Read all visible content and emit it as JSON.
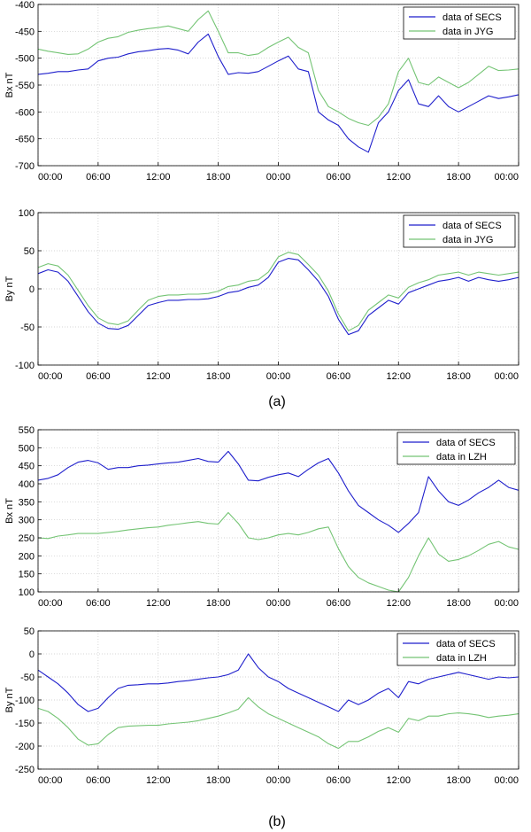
{
  "panel_labels": {
    "a": "(a)",
    "b": "(b)"
  },
  "colors": {
    "secs": "#1f1fcc",
    "station": "#74c474",
    "grid": "#c8c8c8",
    "axis": "#000000"
  },
  "chart_data": [
    {
      "type": "line",
      "title": "",
      "xlabel": "",
      "ylabel": "Bx nT",
      "ylim": [
        -700,
        -400
      ],
      "yticks": [
        -700,
        -650,
        -600,
        -550,
        -500,
        -450,
        -400
      ],
      "xticks": [
        "00:00",
        "06:00",
        "12:00",
        "18:00",
        "00:00",
        "06:00",
        "12:00",
        "18:00",
        "00:00"
      ],
      "grid": true,
      "legend": "top-right",
      "series": [
        {
          "name": "data of SECS",
          "color": "secs",
          "values": [
            -530,
            -528,
            -525,
            -525,
            -522,
            -520,
            -505,
            -500,
            -498,
            -492,
            -488,
            -486,
            -483,
            -482,
            -485,
            -492,
            -470,
            -455,
            -497,
            -530,
            -527,
            -528,
            -525,
            -515,
            -505,
            -496,
            -520,
            -525,
            -600,
            -615,
            -625,
            -650,
            -665,
            -675,
            -620,
            -600,
            -560,
            -540,
            -585,
            -590,
            -570,
            -590,
            -600,
            -590,
            -580,
            -570,
            -575,
            -572,
            -568
          ]
        },
        {
          "name": "data in JYG",
          "color": "station",
          "values": [
            -483,
            -487,
            -490,
            -493,
            -492,
            -483,
            -470,
            -463,
            -460,
            -452,
            -448,
            -445,
            -443,
            -440,
            -445,
            -450,
            -428,
            -412,
            -450,
            -490,
            -490,
            -495,
            -492,
            -480,
            -470,
            -461,
            -480,
            -490,
            -560,
            -590,
            -600,
            -612,
            -620,
            -625,
            -610,
            -585,
            -525,
            -500,
            -545,
            -550,
            -535,
            -545,
            -555,
            -545,
            -530,
            -515,
            -523,
            -522,
            -520
          ]
        }
      ]
    },
    {
      "type": "line",
      "title": "",
      "xlabel": "",
      "ylabel": "By nT",
      "ylim": [
        -100,
        100
      ],
      "yticks": [
        -100,
        -50,
        0,
        50,
        100
      ],
      "xticks": [
        "00:00",
        "06:00",
        "12:00",
        "18:00",
        "00:00",
        "06:00",
        "12:00",
        "18:00",
        "00:00"
      ],
      "grid": true,
      "legend": "top-right",
      "series": [
        {
          "name": "data of SECS",
          "color": "secs",
          "values": [
            20,
            25,
            22,
            10,
            -10,
            -30,
            -45,
            -52,
            -53,
            -48,
            -35,
            -22,
            -18,
            -15,
            -15,
            -14,
            -14,
            -13,
            -10,
            -5,
            -3,
            2,
            5,
            15,
            35,
            40,
            38,
            25,
            10,
            -10,
            -40,
            -60,
            -55,
            -35,
            -25,
            -15,
            -20,
            -5,
            0,
            5,
            10,
            12,
            15,
            10,
            15,
            12,
            10,
            12,
            15
          ]
        },
        {
          "name": "data in JYG",
          "color": "station",
          "values": [
            28,
            33,
            30,
            18,
            -2,
            -22,
            -38,
            -45,
            -47,
            -42,
            -28,
            -15,
            -10,
            -8,
            -8,
            -7,
            -7,
            -6,
            -3,
            3,
            5,
            10,
            12,
            22,
            42,
            48,
            45,
            32,
            18,
            -3,
            -33,
            -55,
            -48,
            -28,
            -18,
            -8,
            -12,
            2,
            8,
            12,
            18,
            20,
            22,
            18,
            22,
            20,
            18,
            20,
            22
          ]
        }
      ]
    },
    {
      "type": "line",
      "title": "",
      "xlabel": "",
      "ylabel": "Bx nT",
      "ylim": [
        100,
        550
      ],
      "yticks": [
        100,
        150,
        200,
        250,
        300,
        350,
        400,
        450,
        500,
        550
      ],
      "xticks": [
        "00:00",
        "06:00",
        "12:00",
        "18:00",
        "00:00",
        "06:00",
        "12:00",
        "18:00",
        "00:00"
      ],
      "grid": true,
      "legend": "top-right",
      "series": [
        {
          "name": "data of SECS",
          "color": "secs",
          "values": [
            410,
            415,
            425,
            445,
            460,
            465,
            458,
            440,
            445,
            445,
            450,
            452,
            455,
            458,
            460,
            465,
            470,
            462,
            460,
            490,
            455,
            410,
            408,
            418,
            425,
            430,
            420,
            440,
            458,
            470,
            430,
            380,
            340,
            320,
            300,
            285,
            265,
            290,
            320,
            420,
            380,
            350,
            340,
            355,
            375,
            390,
            410,
            390,
            382
          ]
        },
        {
          "name": "data in LZH",
          "color": "station",
          "values": [
            250,
            248,
            255,
            258,
            262,
            262,
            262,
            265,
            268,
            272,
            275,
            278,
            280,
            285,
            288,
            292,
            295,
            290,
            288,
            320,
            290,
            250,
            245,
            250,
            258,
            262,
            258,
            265,
            275,
            280,
            220,
            170,
            140,
            125,
            115,
            105,
            100,
            140,
            200,
            250,
            205,
            185,
            190,
            200,
            215,
            232,
            240,
            225,
            218
          ]
        }
      ]
    },
    {
      "type": "line",
      "title": "",
      "xlabel": "",
      "ylabel": "By nT",
      "ylim": [
        -250,
        50
      ],
      "yticks": [
        -250,
        -200,
        -150,
        -100,
        -50,
        0,
        50
      ],
      "xticks": [
        "00:00",
        "06:00",
        "12:00",
        "18:00",
        "00:00",
        "06:00",
        "12:00",
        "18:00",
        "00:00"
      ],
      "grid": true,
      "legend": "top-right",
      "series": [
        {
          "name": "data of SECS",
          "color": "secs",
          "values": [
            -35,
            -50,
            -65,
            -85,
            -110,
            -125,
            -118,
            -95,
            -75,
            -68,
            -67,
            -65,
            -65,
            -63,
            -60,
            -58,
            -55,
            -52,
            -50,
            -45,
            -35,
            0,
            -30,
            -50,
            -60,
            -75,
            -85,
            -95,
            -105,
            -115,
            -125,
            -100,
            -110,
            -100,
            -85,
            -75,
            -95,
            -60,
            -65,
            -55,
            -50,
            -45,
            -40,
            -45,
            -50,
            -55,
            -50,
            -52,
            -50
          ]
        },
        {
          "name": "data in LZH",
          "color": "station",
          "values": [
            -118,
            -125,
            -140,
            -160,
            -185,
            -198,
            -195,
            -175,
            -160,
            -157,
            -156,
            -155,
            -155,
            -152,
            -150,
            -148,
            -145,
            -140,
            -135,
            -128,
            -120,
            -95,
            -115,
            -130,
            -140,
            -150,
            -160,
            -170,
            -180,
            -195,
            -205,
            -190,
            -190,
            -180,
            -168,
            -160,
            -170,
            -140,
            -145,
            -135,
            -135,
            -130,
            -128,
            -130,
            -133,
            -138,
            -135,
            -133,
            -130
          ]
        }
      ]
    }
  ]
}
